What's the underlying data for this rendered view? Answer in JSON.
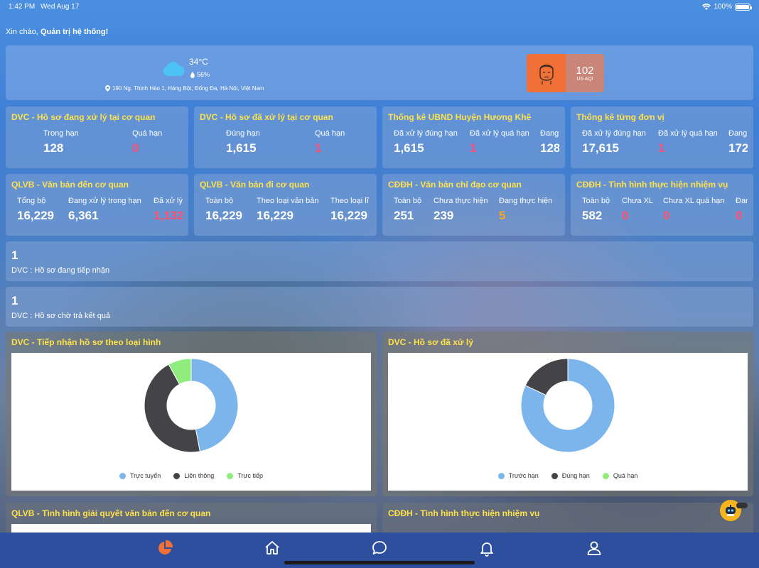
{
  "status": {
    "time": "1:42 PM",
    "date": "Wed Aug 17",
    "battery": "100%",
    "battery_level": 1.0
  },
  "greeting": {
    "prefix": "Xin chào,",
    "user": "Quản trị hệ thống!"
  },
  "weather": {
    "temp": "34°C",
    "humidity": "56%",
    "address": "190 Ng. Thịnh Hào 1, Hàng Bột, Đống Đa, Hà Nội, Việt Nam",
    "aqi_value": "102",
    "aqi_unit": "US AQI",
    "aqi_color": "#f07038"
  },
  "stats_row1": [
    {
      "title": "DVC - Hồ sơ đang xử lý tại cơ quan",
      "cols": [
        {
          "label": "Trong hạn",
          "value": "128",
          "color": "white"
        },
        {
          "label": "Quá hạn",
          "value": "0",
          "color": "red"
        }
      ]
    },
    {
      "title": "DVC - Hồ sơ đã xử lý tại cơ quan",
      "cols": [
        {
          "label": "Đúng hạn",
          "value": "1,615",
          "color": "white"
        },
        {
          "label": "Quá hạn",
          "value": "1",
          "color": "red"
        }
      ]
    },
    {
      "title": "Thống kê UBND Huyện Hương Khê",
      "cols": [
        {
          "label": "Đã xử lý đúng hạn",
          "value": "1,615",
          "color": "white"
        },
        {
          "label": "Đã xử lý quá hạn",
          "value": "1",
          "color": "red"
        },
        {
          "label": "Đang",
          "value": "128",
          "color": "white"
        }
      ]
    },
    {
      "title": "Thống kê từng đơn vị",
      "cols": [
        {
          "label": "Đã xử lý đúng hạn",
          "value": "17,615",
          "color": "white"
        },
        {
          "label": "Đã xử lý quá hạn",
          "value": "1",
          "color": "red"
        },
        {
          "label": "Đang",
          "value": "172",
          "color": "white"
        }
      ]
    }
  ],
  "stats_row2": [
    {
      "title": "QLVB - Văn bản đến cơ quan",
      "cols": [
        {
          "label": "Tổng bộ",
          "value": "16,229",
          "color": "white"
        },
        {
          "label": "Đang xử lý trong hạn",
          "value": "6,361",
          "color": "white"
        },
        {
          "label": "Đã xử lý",
          "value": "1,132",
          "color": "red"
        }
      ]
    },
    {
      "title": "QLVB - Văn bản đi cơ quan",
      "cols": [
        {
          "label": "Toàn bộ",
          "value": "16,229",
          "color": "white"
        },
        {
          "label": "Theo loại văn bản",
          "value": "16,229",
          "color": "white"
        },
        {
          "label": "Theo loại lĩ",
          "value": "16,229",
          "color": "white"
        }
      ]
    },
    {
      "title": "CĐĐH - Văn bản chỉ đạo cơ quan",
      "cols": [
        {
          "label": "Toàn bộ",
          "value": "251",
          "color": "white"
        },
        {
          "label": "Chưa thực hiện",
          "value": "239",
          "color": "white"
        },
        {
          "label": "Đang thực hiện",
          "value": "5",
          "color": "orange"
        }
      ]
    },
    {
      "title": "CĐĐH - Tình hình thực hiện nhiệm vụ",
      "cols": [
        {
          "label": "Toàn bộ",
          "value": "582",
          "color": "white"
        },
        {
          "label": "Chưa XL",
          "value": "0",
          "color": "red"
        },
        {
          "label": "Chưa XL quá hạn",
          "value": "0",
          "color": "red"
        },
        {
          "label": "Đan",
          "value": "0",
          "color": "red"
        }
      ]
    }
  ],
  "list_items": [
    {
      "count": "1",
      "label": "DVC : Hồ sơ đang tiếp nhận"
    },
    {
      "count": "1",
      "label": "DVC : Hồ sơ chờ trả kết quả"
    }
  ],
  "charts": {
    "left_title": "DVC - Tiếp nhận hồ sơ theo loại hình",
    "right_title": "DVC - Hồ sơ đã xử lý",
    "bottom_left_title": "QLVB - Tình hình giải quyết văn bản đến cơ quan",
    "bottom_right_title": "CĐĐH - Tình hình thực hiện nhiệm vụ"
  },
  "chart_data": [
    {
      "type": "pie",
      "title": "DVC - Tiếp nhận hồ sơ theo loại hình",
      "categories": [
        "Trực tuyến",
        "Liên thông",
        "Trực tiếp"
      ],
      "values": [
        47,
        45,
        8
      ],
      "colors": [
        "#7cb5ec",
        "#434348",
        "#90ed7d"
      ],
      "legend": "bottom"
    },
    {
      "type": "pie",
      "title": "DVC - Hồ sơ đã xử lý",
      "categories": [
        "Trước hạn",
        "Đúng hạn",
        "Quá hạn"
      ],
      "values": [
        82,
        18,
        0
      ],
      "colors": [
        "#7cb5ec",
        "#434348",
        "#90ed7d"
      ],
      "legend": "bottom"
    }
  ],
  "tabbar": {
    "items": [
      {
        "name": "dashboard",
        "icon": "pie-chart-icon",
        "active": true
      },
      {
        "name": "home",
        "icon": "home-icon",
        "active": false
      },
      {
        "name": "chat",
        "icon": "chat-icon",
        "active": false
      },
      {
        "name": "notifications",
        "icon": "bell-icon",
        "active": false
      },
      {
        "name": "profile",
        "icon": "user-icon",
        "active": false
      }
    ],
    "active_color": "#f07038"
  }
}
